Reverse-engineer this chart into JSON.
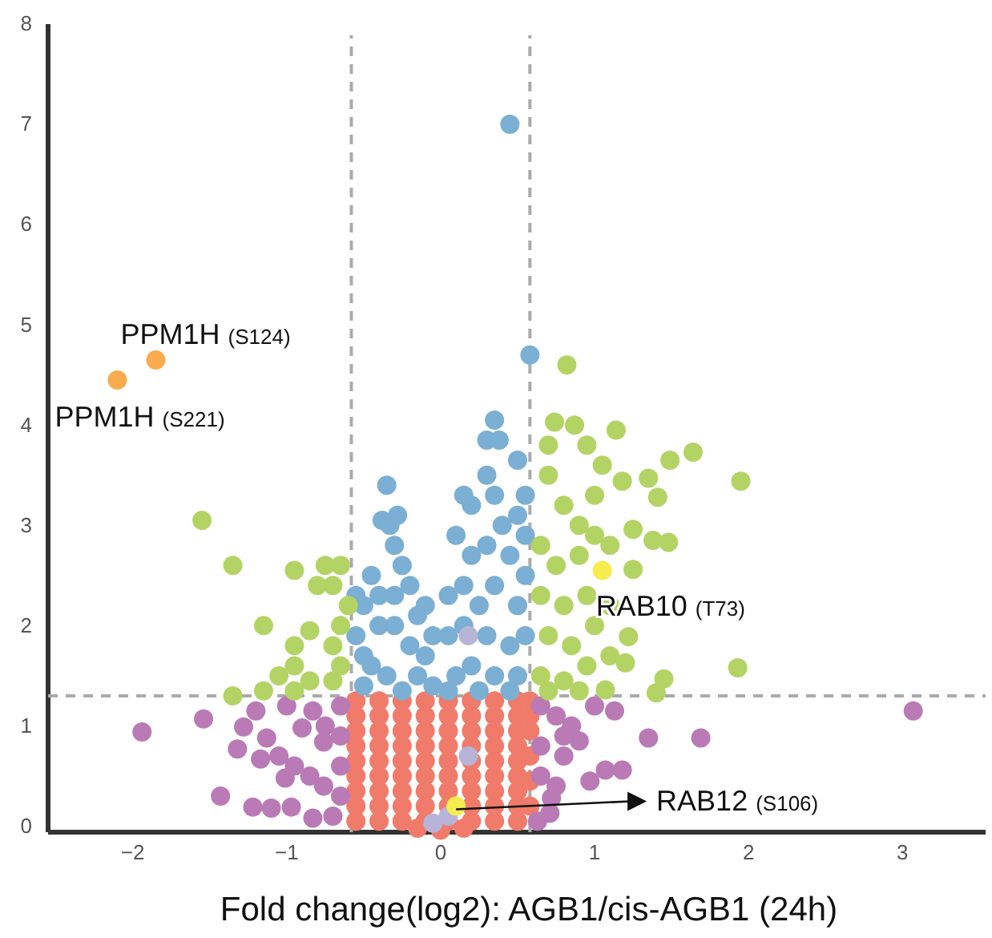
{
  "chart_data": {
    "type": "scatter",
    "xlabel": "Fold change(log2): AGB1/cis-AGB1 (24h)",
    "xlim": [
      -2.55,
      3.54
    ],
    "ylim": [
      -0.06,
      8
    ],
    "xticks": [
      {
        "value": -2,
        "label": "−2"
      },
      {
        "value": -1,
        "label": "−1"
      },
      0,
      1,
      2,
      3
    ],
    "yticks": [
      0,
      1,
      2,
      3,
      4,
      5,
      6,
      7,
      8
    ],
    "grid": false,
    "marker": "circle",
    "ref_lines": [
      {
        "axis": "x",
        "value": -0.58,
        "color": "#aaaaaa",
        "line_style": "dashed"
      },
      {
        "axis": "x",
        "value": 0.58,
        "color": "#aaaaaa",
        "line_style": "dashed"
      },
      {
        "axis": "y",
        "value": 1.3,
        "color": "#aaaaaa",
        "line_style": "dashed"
      }
    ],
    "annotations": [
      {
        "text": "PPM1H (S124)",
        "x": -1.85,
        "y": 4.65
      },
      {
        "text": "PPM1H (S221)",
        "x": -2.1,
        "y": 4.45
      },
      {
        "text": "RAB10 (T73)",
        "x": 1.05,
        "y": 2.55
      },
      {
        "text": "RAB12 (S106)",
        "x": 0.1,
        "y": 0.2
      }
    ],
    "series": [
      {
        "color": "#f07b6b",
        "x": [
          -0.55,
          -0.4,
          -0.25,
          -0.1,
          0.05,
          0.2,
          0.35,
          0.5,
          -0.55,
          -0.4,
          -0.25,
          -0.1,
          0.05,
          0.2,
          0.35,
          0.5,
          -0.55,
          -0.4,
          -0.25,
          -0.1,
          0.05,
          0.2,
          0.35,
          0.5,
          -0.55,
          -0.4,
          -0.25,
          -0.1,
          0.05,
          0.2,
          0.35,
          0.5,
          -0.55,
          -0.4,
          -0.25,
          -0.1,
          0.05,
          0.2,
          0.35,
          0.5,
          -0.55,
          -0.4,
          -0.25,
          -0.1,
          0.05,
          0.2,
          0.35,
          0.5,
          -0.55,
          -0.4,
          -0.25,
          -0.1,
          0.05,
          0.2,
          0.35,
          0.5,
          -0.55,
          -0.4,
          -0.25,
          -0.1,
          0.05,
          0.2,
          0.35,
          0.5,
          -0.55,
          -0.4,
          -0.25,
          -0.1,
          0.05,
          0.2,
          0.35,
          0.5,
          -0.15,
          0.0,
          0.15,
          0.58,
          0.58,
          0.58,
          0.58,
          0.58,
          0.58
        ],
        "values": [
          0.05,
          0.05,
          0.05,
          0.05,
          0.05,
          0.05,
          0.05,
          0.05,
          0.2,
          0.2,
          0.2,
          0.2,
          0.2,
          0.2,
          0.2,
          0.2,
          0.35,
          0.35,
          0.35,
          0.35,
          0.35,
          0.35,
          0.35,
          0.35,
          0.5,
          0.5,
          0.5,
          0.5,
          0.5,
          0.5,
          0.5,
          0.5,
          0.65,
          0.65,
          0.65,
          0.65,
          0.65,
          0.65,
          0.65,
          0.65,
          0.8,
          0.8,
          0.8,
          0.8,
          0.8,
          0.8,
          0.8,
          0.8,
          0.95,
          0.95,
          0.95,
          0.95,
          0.95,
          0.95,
          0.95,
          0.95,
          1.1,
          1.1,
          1.1,
          1.1,
          1.1,
          1.1,
          1.1,
          1.1,
          1.25,
          1.25,
          1.25,
          1.25,
          1.25,
          1.25,
          1.25,
          1.25,
          -0.02,
          -0.04,
          -0.02,
          0.2,
          0.45,
          0.7,
          0.95,
          1.1,
          1.25
        ]
      },
      {
        "color": "#b97ab6",
        "x": [
          -1.94,
          -1.54,
          -1.43,
          -1.22,
          -1.1,
          -1.32,
          -1.17,
          -1.28,
          -1.13,
          -1.01,
          -0.97,
          -0.83,
          -0.9,
          -0.83,
          -0.76,
          -0.76,
          -0.65,
          -0.65,
          -0.65,
          -0.65,
          -0.7,
          -1.05,
          -0.95,
          -0.85,
          -0.75,
          -1.2,
          -1.0,
          1.13,
          1.35,
          1.69,
          3.07,
          1.18,
          1.07,
          0.97,
          0.71,
          0.72,
          0.65,
          0.75,
          0.85,
          0.65,
          0.8,
          0.9,
          0.65,
          0.75,
          1.0,
          0.63,
          0.8
        ],
        "values": [
          0.94,
          1.07,
          0.3,
          0.19,
          0.18,
          0.77,
          0.67,
          0.99,
          0.88,
          0.48,
          0.19,
          0.08,
          0.98,
          1.15,
          0.84,
          0.4,
          1.2,
          0.9,
          0.6,
          0.3,
          0.1,
          0.7,
          0.6,
          0.5,
          1.0,
          1.15,
          1.2,
          1.15,
          0.88,
          0.88,
          1.15,
          0.56,
          0.56,
          0.45,
          0.13,
          0.28,
          1.2,
          1.1,
          1.0,
          0.8,
          0.7,
          0.85,
          0.5,
          0.4,
          1.2,
          0.05,
          0.9
        ]
      },
      {
        "color": "#7bafd4",
        "x": [
          0.45,
          0.58,
          0.35,
          0.3,
          0.38,
          0.5,
          -0.35,
          -0.38,
          -0.28,
          -0.33,
          -0.3,
          -0.25,
          -0.45,
          -0.2,
          -0.55,
          -0.5,
          -0.1,
          -0.05,
          -0.55,
          -0.4,
          -0.3,
          -0.2,
          -0.45,
          -0.35,
          -0.15,
          -0.05,
          -0.5,
          -0.25,
          -0.1,
          -0.4,
          -0.3,
          -0.15,
          -0.5,
          0.15,
          0.2,
          0.3,
          0.35,
          0.4,
          0.5,
          0.1,
          0.2,
          0.3,
          0.45,
          0.55,
          0.05,
          0.15,
          0.25,
          0.35,
          0.5,
          0.05,
          0.15,
          0.3,
          0.45,
          0.55,
          0.1,
          0.2,
          0.35,
          0.5,
          0.05,
          0.25,
          0.45,
          0.55,
          0.55
        ],
        "values": [
          7.0,
          4.7,
          4.05,
          3.85,
          3.85,
          3.65,
          3.4,
          3.05,
          3.1,
          3.0,
          2.8,
          2.6,
          2.5,
          2.4,
          2.3,
          2.2,
          2.2,
          1.9,
          1.9,
          2.0,
          2.0,
          1.8,
          1.6,
          1.5,
          1.5,
          1.4,
          1.4,
          1.35,
          1.7,
          2.3,
          2.3,
          2.1,
          1.7,
          3.3,
          3.2,
          3.5,
          3.3,
          3.0,
          3.1,
          2.9,
          2.7,
          2.8,
          2.7,
          2.5,
          2.3,
          2.4,
          2.2,
          2.4,
          2.2,
          1.9,
          2.0,
          1.9,
          1.8,
          1.9,
          1.5,
          1.6,
          1.5,
          1.5,
          1.35,
          1.35,
          1.35,
          3.3,
          2.9
        ]
      },
      {
        "color": "#b3d465",
        "x": [
          -1.55,
          -1.35,
          -0.95,
          -0.75,
          -0.65,
          -0.8,
          -0.7,
          -1.15,
          -0.85,
          -0.65,
          -0.95,
          -0.7,
          -0.95,
          -0.65,
          -1.05,
          -0.85,
          -0.7,
          -1.35,
          -1.15,
          -0.95,
          -0.6,
          0.74,
          0.87,
          1.14,
          1.64,
          1.95,
          1.93,
          1.45,
          1.4,
          1.48,
          1.38,
          1.41,
          1.35,
          1.49,
          1.18,
          1.25,
          1.25,
          1.22,
          1.2,
          1.07,
          0.7,
          0.8,
          0.9,
          1.0,
          0.65,
          0.75,
          0.9,
          1.0,
          1.1,
          0.65,
          0.8,
          0.95,
          1.1,
          0.7,
          0.85,
          1.0,
          0.65,
          0.8,
          0.95,
          1.1,
          0.7,
          0.9,
          1.05,
          0.95,
          0.82,
          0.7
        ],
        "values": [
          3.05,
          2.6,
          2.55,
          2.6,
          2.6,
          2.4,
          2.4,
          2.0,
          1.95,
          2.0,
          1.8,
          1.8,
          1.6,
          1.6,
          1.5,
          1.45,
          1.45,
          1.3,
          1.35,
          1.35,
          2.2,
          4.03,
          4.0,
          3.95,
          3.73,
          3.44,
          1.58,
          1.47,
          1.33,
          2.83,
          2.85,
          3.28,
          3.47,
          3.65,
          3.44,
          2.96,
          2.56,
          1.89,
          1.63,
          1.36,
          3.5,
          3.2,
          3.0,
          3.3,
          2.8,
          2.6,
          2.7,
          2.9,
          2.8,
          2.3,
          2.2,
          2.3,
          2.2,
          1.9,
          1.8,
          2.0,
          1.5,
          1.45,
          1.6,
          1.7,
          1.35,
          1.35,
          3.6,
          3.8,
          4.6,
          3.8
        ]
      },
      {
        "color": "#b8b4d8",
        "x": [
          0.18,
          0.18,
          0.05,
          -0.05
        ],
        "values": [
          1.9,
          0.7,
          0.1,
          0.03
        ]
      },
      {
        "color": "#f9ab4f",
        "x": [
          -2.1,
          -1.85
        ],
        "values": [
          4.45,
          4.65
        ]
      },
      {
        "color": "#f7ec4e",
        "x": [
          1.05,
          0.1
        ],
        "values": [
          2.55,
          0.2
        ]
      }
    ]
  }
}
